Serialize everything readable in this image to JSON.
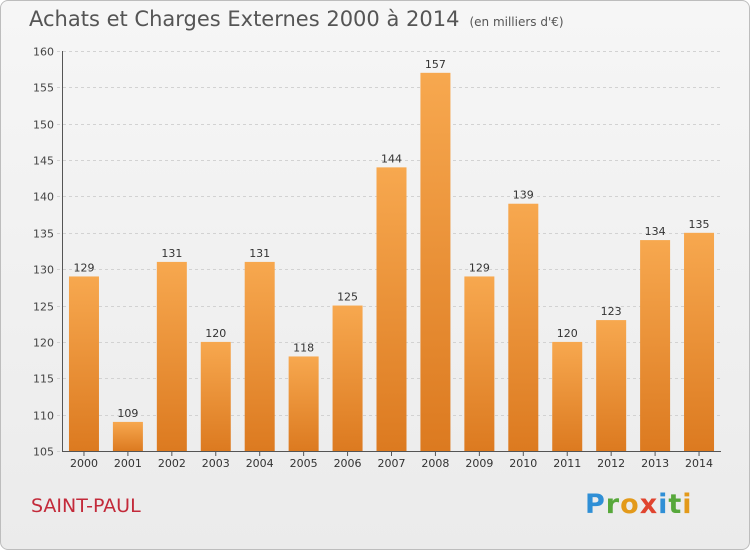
{
  "header": {
    "title": "Achats et Charges Externes 2000 à 2014",
    "unit": "(en milliers d'€)"
  },
  "footer": {
    "place": "SAINT-PAUL",
    "logo_text": "Proxiti"
  },
  "colors": {
    "bar_top": "#f7a84f",
    "bar_bottom": "#dc7a20",
    "place_text": "#c32a3a"
  },
  "chart_data": {
    "type": "bar",
    "title": "Achats et Charges Externes 2000 à 2014",
    "subtitle": "(en milliers d'€)",
    "xlabel": "",
    "ylabel": "",
    "categories": [
      "2000",
      "2001",
      "2002",
      "2003",
      "2004",
      "2005",
      "2006",
      "2007",
      "2008",
      "2009",
      "2010",
      "2011",
      "2012",
      "2013",
      "2014"
    ],
    "values": [
      129,
      109,
      131,
      120,
      131,
      118,
      125,
      144,
      157,
      129,
      139,
      120,
      123,
      134,
      135
    ],
    "ylim": [
      105,
      160
    ],
    "yticks": [
      105,
      110,
      115,
      120,
      125,
      130,
      135,
      140,
      145,
      150,
      155,
      160
    ],
    "grid": true,
    "data_labels": true
  }
}
